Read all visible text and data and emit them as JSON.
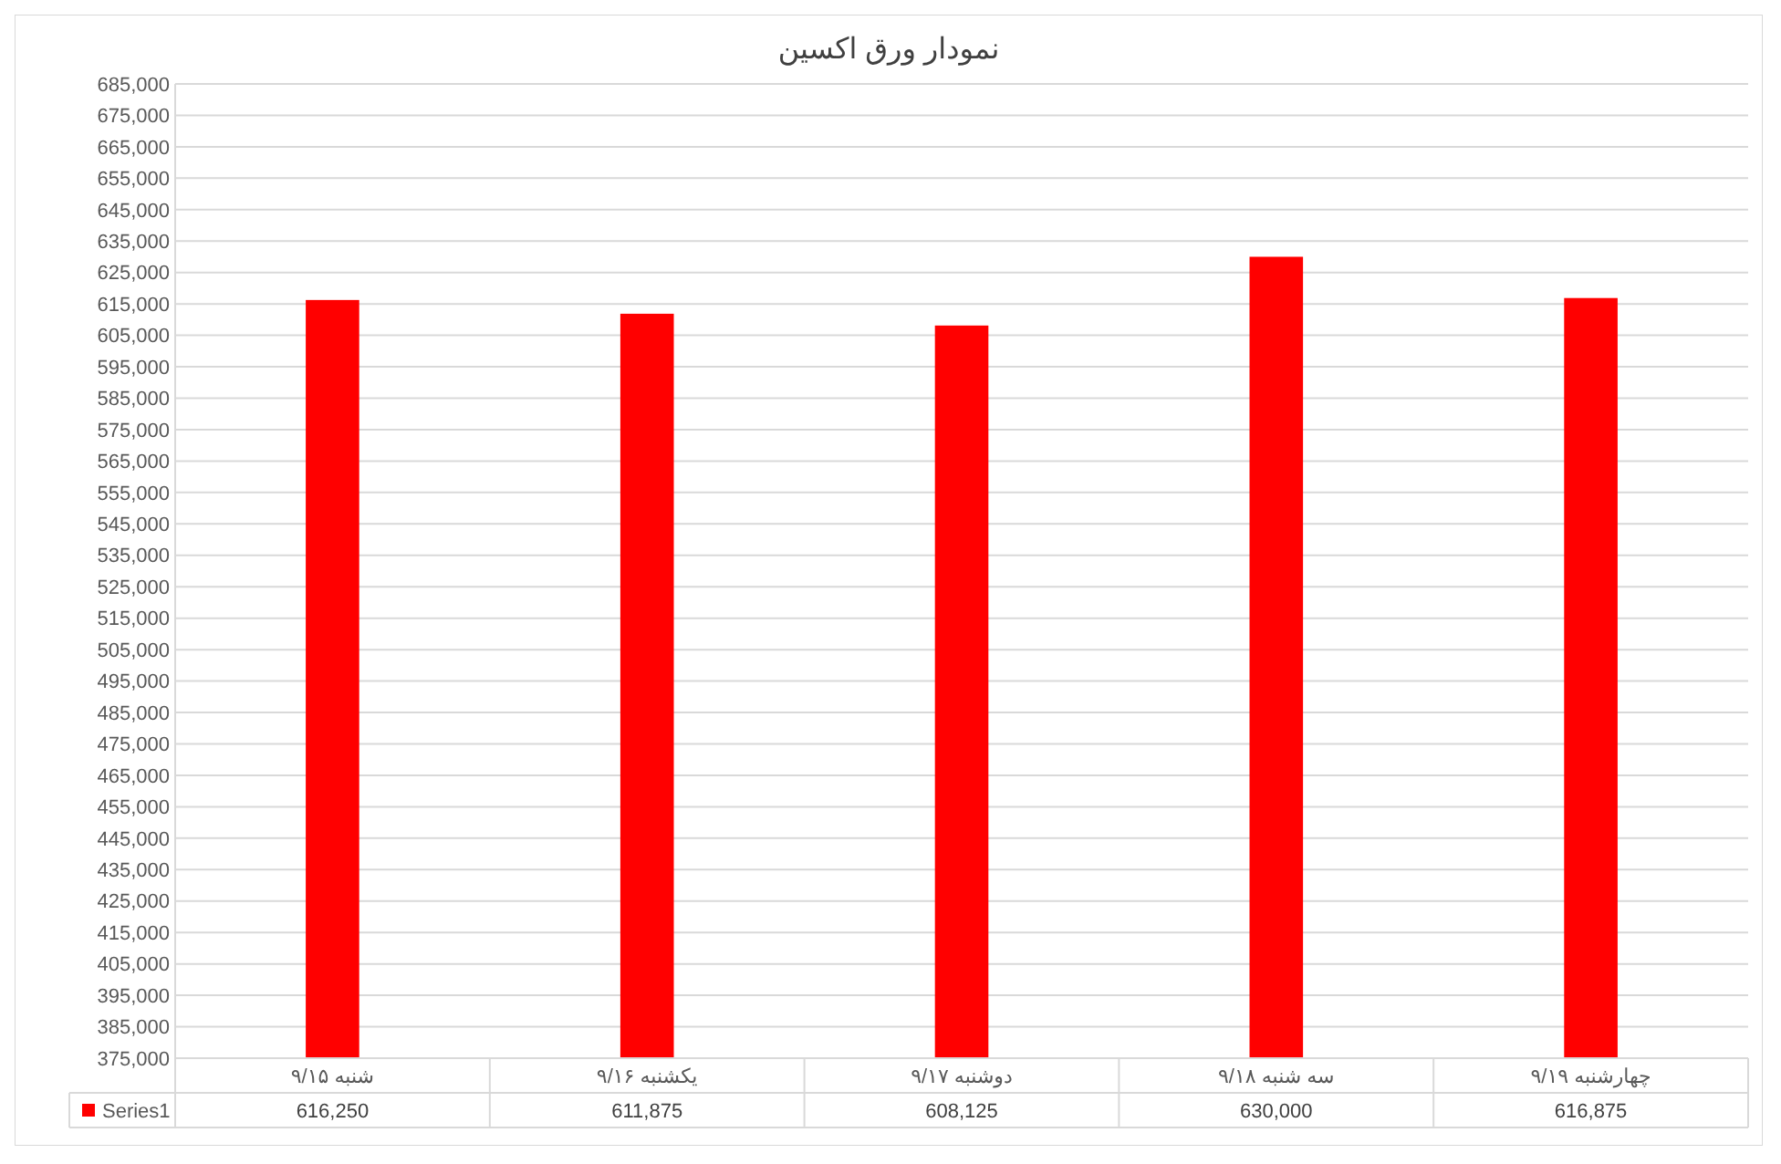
{
  "chart_data": {
    "type": "bar",
    "title": "نمودار ورق اکسین",
    "categories": [
      "شنبه ۹/۱۵",
      "یکشنبه ۹/۱۶",
      "دوشنبه ۹/۱۷",
      "سه شنبه ۹/۱۸",
      "چهارشنبه ۹/۱۹"
    ],
    "series": [
      {
        "name": "Series1",
        "color": "#ff0000",
        "values": [
          616250,
          611875,
          608125,
          630000,
          616875
        ],
        "value_labels": [
          "616,250",
          "611,875",
          "608,125",
          "630,000",
          "616,875"
        ]
      }
    ],
    "ylim": [
      375000,
      685000
    ],
    "yticks": [
      {
        "value": 375000,
        "label": "375,000"
      },
      {
        "value": 385000,
        "label": "385,000"
      },
      {
        "value": 395000,
        "label": "395,000"
      },
      {
        "value": 405000,
        "label": "405,000"
      },
      {
        "value": 415000,
        "label": "415,000"
      },
      {
        "value": 425000,
        "label": "425,000"
      },
      {
        "value": 435000,
        "label": "435,000"
      },
      {
        "value": 445000,
        "label": "445,000"
      },
      {
        "value": 455000,
        "label": "455,000"
      },
      {
        "value": 465000,
        "label": "465,000"
      },
      {
        "value": 475000,
        "label": "475,000"
      },
      {
        "value": 485000,
        "label": "485,000"
      },
      {
        "value": 495000,
        "label": "495,000"
      },
      {
        "value": 505000,
        "label": "505,000"
      },
      {
        "value": 515000,
        "label": "515,000"
      },
      {
        "value": 525000,
        "label": "525,000"
      },
      {
        "value": 535000,
        "label": "535,000"
      },
      {
        "value": 545000,
        "label": "545,000"
      },
      {
        "value": 555000,
        "label": "555,000"
      },
      {
        "value": 565000,
        "label": "565,000"
      },
      {
        "value": 575000,
        "label": "575,000"
      },
      {
        "value": 585000,
        "label": "585,000"
      },
      {
        "value": 595000,
        "label": "595,000"
      },
      {
        "value": 605000,
        "label": "605,000"
      },
      {
        "value": 615000,
        "label": "615,000"
      },
      {
        "value": 625000,
        "label": "625,000"
      },
      {
        "value": 635000,
        "label": "635,000"
      },
      {
        "value": 645000,
        "label": "645,000"
      },
      {
        "value": 655000,
        "label": "655,000"
      },
      {
        "value": 665000,
        "label": "665,000"
      },
      {
        "value": 675000,
        "label": "675,000"
      },
      {
        "value": 685000,
        "label": "685,000"
      }
    ],
    "grid": "y",
    "legend": "bottom"
  }
}
